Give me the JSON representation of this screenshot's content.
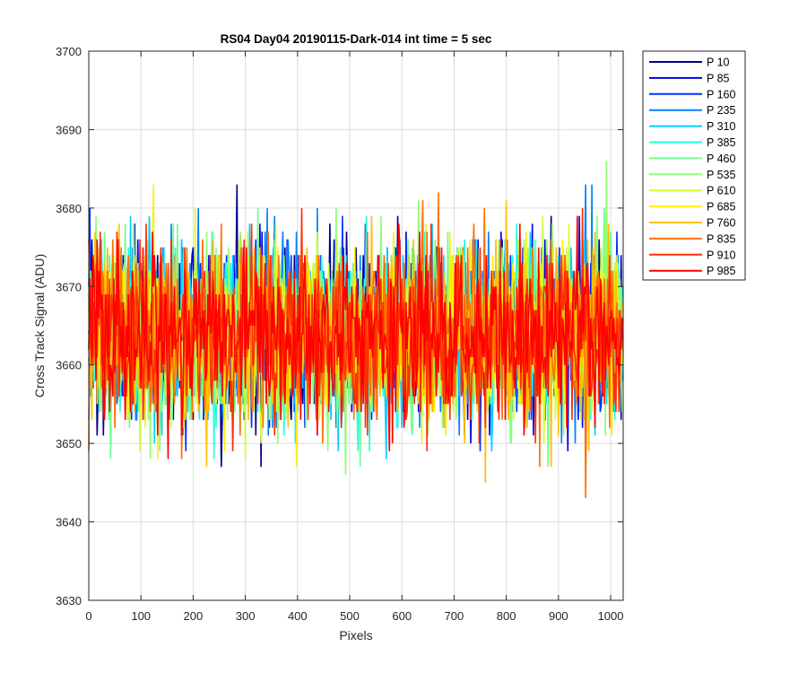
{
  "chart_data": {
    "type": "line",
    "title": "RS04 Day04 20190115-Dark-014 int time = 5 sec",
    "xlabel": "Pixels",
    "ylabel": "Cross Track Signal (ADU)",
    "xlim": [
      0,
      1024
    ],
    "ylim": [
      3630,
      3700
    ],
    "x_ticks": [
      "0",
      "100",
      "200",
      "300",
      "400",
      "500",
      "600",
      "700",
      "800",
      "900",
      "1000"
    ],
    "x_tick_values": [
      0,
      100,
      200,
      300,
      400,
      500,
      600,
      700,
      800,
      900,
      1000
    ],
    "y_ticks": [
      "3630",
      "3640",
      "3650",
      "3660",
      "3670",
      "3680",
      "3690",
      "3700"
    ],
    "y_tick_values": [
      3630,
      3640,
      3650,
      3660,
      3670,
      3680,
      3690,
      3700
    ],
    "grid": true,
    "legend_position": "outside-top-right",
    "x_start": 0,
    "x_end": 1023,
    "series": [
      {
        "name": "P 10",
        "color": "#00008f",
        "noise_seed": 11,
        "mean": 3664,
        "spread": 8
      },
      {
        "name": "P 85",
        "color": "#0000df",
        "noise_seed": 23,
        "mean": 3664,
        "spread": 8
      },
      {
        "name": "P 160",
        "color": "#0030ff",
        "noise_seed": 37,
        "mean": 3664,
        "spread": 8
      },
      {
        "name": "P 235",
        "color": "#0080ff",
        "noise_seed": 41,
        "mean": 3664,
        "spread": 8
      },
      {
        "name": "P 310",
        "color": "#00cfff",
        "noise_seed": 53,
        "mean": 3664,
        "spread": 8
      },
      {
        "name": "P 385",
        "color": "#20ffdf",
        "noise_seed": 67,
        "mean": 3664,
        "spread": 8
      },
      {
        "name": "P 460",
        "color": "#70ff8f",
        "noise_seed": 71,
        "mean": 3664,
        "spread": 8
      },
      {
        "name": "P 535",
        "color": "#8fff70",
        "noise_seed": 83,
        "mean": 3664,
        "spread": 8
      },
      {
        "name": "P 610",
        "color": "#cfff30",
        "noise_seed": 97,
        "mean": 3664,
        "spread": 8
      },
      {
        "name": "P 685",
        "color": "#ffef00",
        "noise_seed": 101,
        "mean": 3664,
        "spread": 8
      },
      {
        "name": "P 760",
        "color": "#ffbf00",
        "noise_seed": 113,
        "mean": 3664,
        "spread": 8
      },
      {
        "name": "P 835",
        "color": "#ff7000",
        "noise_seed": 127,
        "mean": 3664,
        "spread": 8
      },
      {
        "name": "P 910",
        "color": "#ff3000",
        "noise_seed": 131,
        "mean": 3664,
        "spread": 8
      },
      {
        "name": "P 985",
        "color": "#ff0000",
        "noise_seed": 139,
        "mean": 3664,
        "spread": 8
      }
    ]
  }
}
